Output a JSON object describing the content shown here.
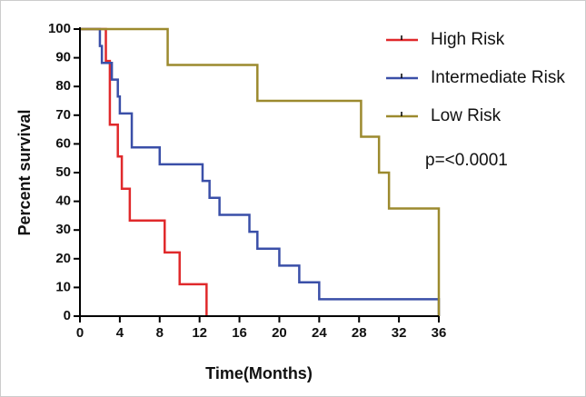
{
  "chart_data": {
    "type": "step",
    "x_label": "Time(Months)",
    "y_label": "Percent survival",
    "annotation": "p=<0.0001",
    "xlim": [
      0,
      36
    ],
    "ylim": [
      0,
      100
    ],
    "xticks": [
      0,
      4,
      8,
      12,
      16,
      20,
      24,
      28,
      32,
      36
    ],
    "yticks": [
      0,
      10,
      20,
      30,
      40,
      50,
      60,
      70,
      80,
      90,
      100
    ],
    "series": [
      {
        "name": "High Risk",
        "color": "#e0292b",
        "x": [
          0,
          2.6,
          3.0,
          3.8,
          4.2,
          5.0,
          8.5,
          10.0,
          12.7
        ],
        "values": [
          100,
          88.9,
          66.7,
          55.6,
          44.4,
          33.3,
          22.2,
          11.1,
          0
        ]
      },
      {
        "name": "Intermediate Risk",
        "color": "#3a4fa8",
        "x": [
          0,
          2.0,
          2.2,
          3.2,
          3.8,
          4.0,
          5.2,
          8.0,
          12.3,
          13.0,
          14.0,
          17.0,
          17.8,
          20.0,
          22.0,
          24.0,
          36.0
        ],
        "values": [
          100,
          94.1,
          88.2,
          82.4,
          76.5,
          70.6,
          58.8,
          52.9,
          47.1,
          41.2,
          35.3,
          29.4,
          23.5,
          17.6,
          11.8,
          5.9,
          0
        ]
      },
      {
        "name": "Low Risk",
        "color": "#9c8a2e",
        "x": [
          0,
          8.8,
          17.8,
          28.2,
          30.0,
          31.0,
          36.0
        ],
        "values": [
          100,
          87.5,
          75,
          62.5,
          50,
          37.5,
          0
        ]
      }
    ]
  }
}
